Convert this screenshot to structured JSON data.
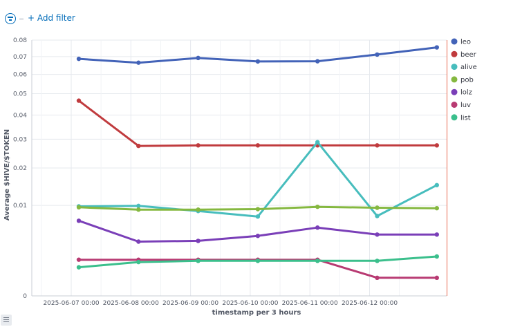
{
  "toolbar": {
    "filter_icon": "filter-icon",
    "add_filter_label": "+ Add filter"
  },
  "chart_data": {
    "type": "line",
    "title": "",
    "xlabel": "timestamp per 3 hours",
    "ylabel": "Average $HIVE/$TOKEN",
    "y_scale": "sqrt",
    "ylim": [
      0,
      0.08
    ],
    "y_ticks": [
      0,
      0.01,
      0.02,
      0.03,
      0.04,
      0.05,
      0.06,
      0.07,
      0.08
    ],
    "y_tick_labels": [
      "0",
      "0.01",
      "0.02",
      "0.03",
      "0.04",
      "0.05",
      "0.06",
      "0.07",
      "0.08"
    ],
    "x_tick_labels": [
      "2025-06-07 00:00",
      "2025-06-08 00:00",
      "2025-06-09 00:00",
      "2025-06-10 00:00",
      "2025-06-11 00:00",
      "2025-06-12 00:00"
    ],
    "categories": [
      "2025-06-07 03:00",
      "2025-06-08 03:00",
      "2025-06-09 03:00",
      "2025-06-10 03:00",
      "2025-06-11 03:00",
      "2025-06-12 03:00",
      "2025-06-13 03:00"
    ],
    "grid": true,
    "legend_position": "right",
    "series": [
      {
        "name": "leo",
        "color": "#4363b8",
        "values": [
          0.0687,
          0.0665,
          0.0692,
          0.0672,
          0.0673,
          0.0712,
          0.0755
        ]
      },
      {
        "name": "beer",
        "color": "#c03b3e",
        "values": [
          0.0466,
          0.0275,
          0.0277,
          0.0277,
          0.0277,
          0.0277,
          0.0277
        ]
      },
      {
        "name": "alive",
        "color": "#47bdbd",
        "values": [
          0.0098,
          0.0099,
          0.0088,
          0.0077,
          0.0289,
          0.0078,
          0.015
        ]
      },
      {
        "name": "pob",
        "color": "#85b840",
        "values": [
          0.0096,
          0.0091,
          0.0091,
          0.0092,
          0.0097,
          0.0095,
          0.0094
        ]
      },
      {
        "name": "lolz",
        "color": "#7a3fb8",
        "values": [
          0.0069,
          0.0036,
          0.0037,
          0.0044,
          0.0057,
          0.0046,
          0.0046
        ]
      },
      {
        "name": "luv",
        "color": "#b83a72",
        "values": [
          0.0016,
          0.0016,
          0.0016,
          0.0016,
          0.0016,
          0.0004,
          0.0004
        ]
      },
      {
        "name": "list",
        "color": "#3bbf8c",
        "values": [
          0.001,
          0.0014,
          0.0015,
          0.0015,
          0.0015,
          0.0015,
          0.0019
        ]
      }
    ]
  }
}
